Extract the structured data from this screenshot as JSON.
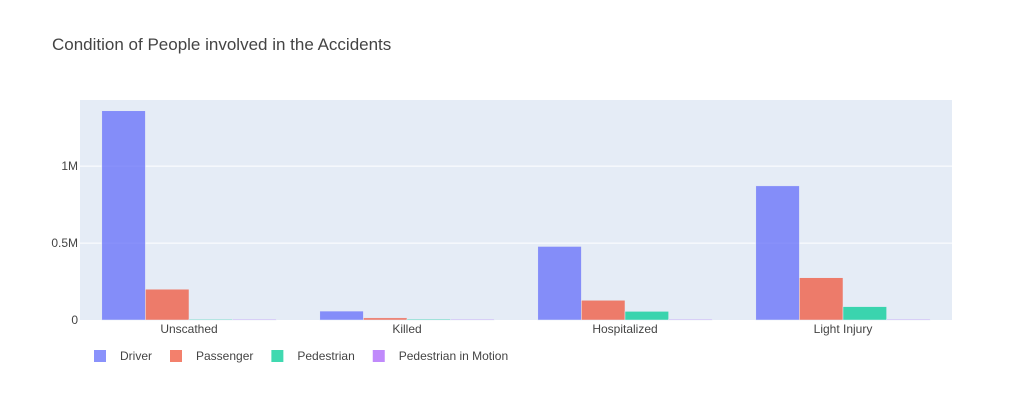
{
  "chart_data": {
    "type": "bar",
    "title": "Condition of People involved in the Accidents",
    "xlabel": "",
    "ylabel": "",
    "categories": [
      "Unscathed",
      "Killed",
      "Hospitalized",
      "Light Injury"
    ],
    "series": [
      {
        "name": "Driver",
        "values": [
          1360000,
          58000,
          478000,
          872000
        ],
        "color": "#636efa"
      },
      {
        "name": "Passenger",
        "values": [
          200000,
          14000,
          128000,
          275000
        ],
        "color": "#ef553b"
      },
      {
        "name": "Pedestrian",
        "values": [
          4000,
          6000,
          56000,
          87000
        ],
        "color": "#00cc96"
      },
      {
        "name": "Pedestrian in Motion",
        "values": [
          1000,
          500,
          2000,
          3000
        ],
        "color": "#ab63fa"
      }
    ],
    "ylim": [
      0,
      1430000
    ],
    "yticks": [
      {
        "value": 0,
        "label": "0"
      },
      {
        "value": 500000,
        "label": "0.5M"
      },
      {
        "value": 1000000,
        "label": "1M"
      }
    ],
    "grid": true,
    "bar_opacity": 0.75,
    "plot_background": "#e5ecf6",
    "legend_position": "bottom-left"
  }
}
